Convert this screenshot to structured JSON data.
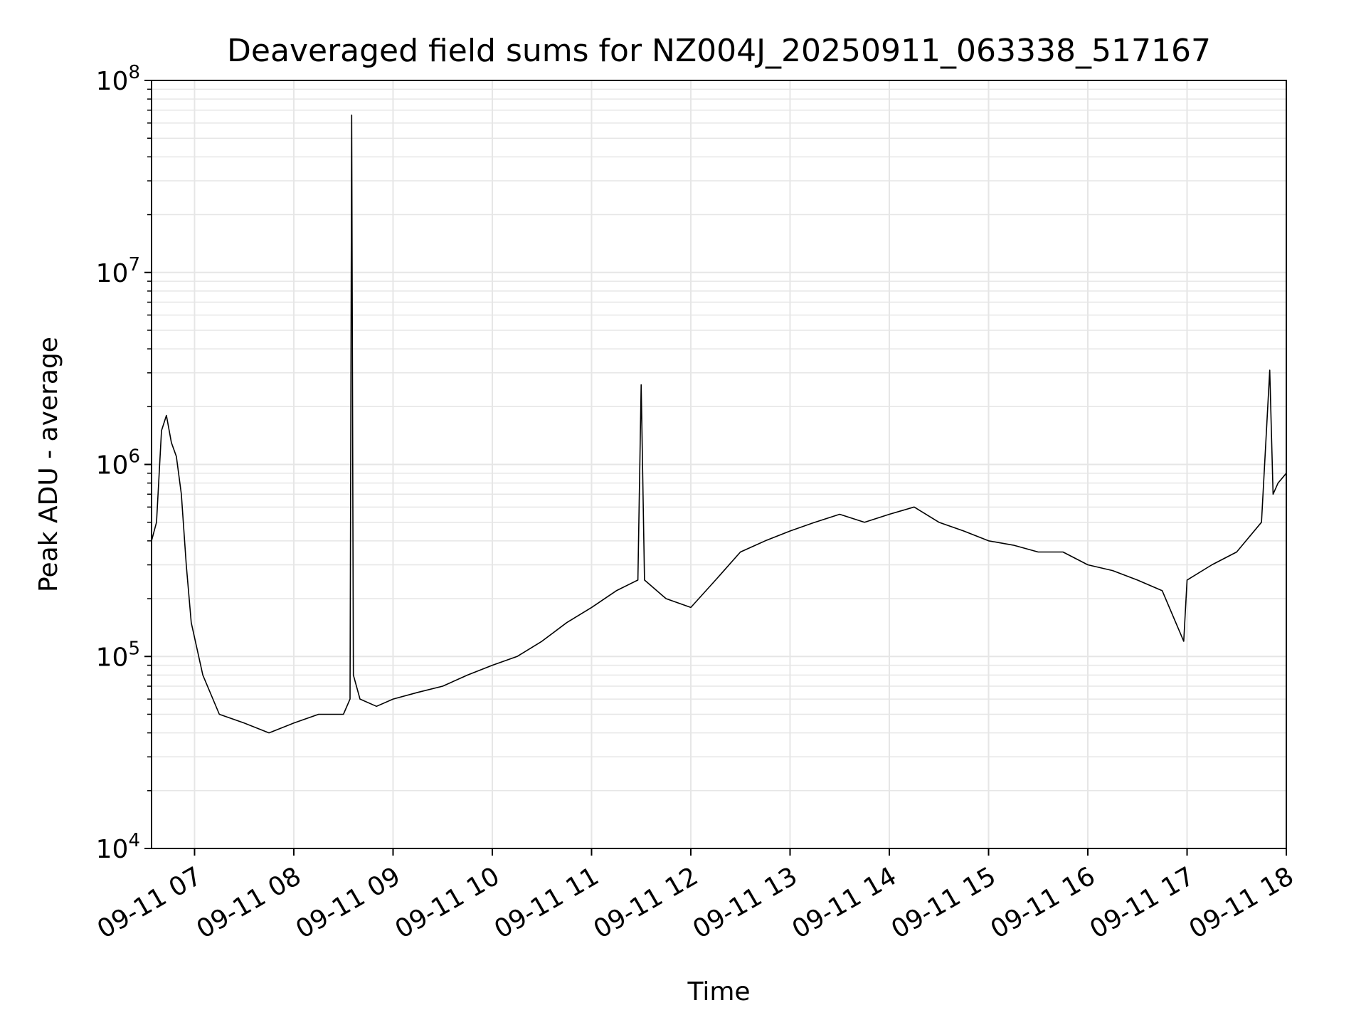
{
  "chart_data": {
    "type": "line",
    "title": "Deaveraged field sums for NZ004J_20250911_063338_517167",
    "xlabel": "Time",
    "ylabel": "Peak ADU - average",
    "yscale": "log",
    "ylim": [
      10000,
      100000000
    ],
    "xlim": [
      "2025-09-11 06:34",
      "2025-09-11 18:00"
    ],
    "grid": true,
    "line_color": "#000000",
    "grid_color": "#e6e6e6",
    "x_ticks": [
      {
        "t": "2025-09-11 07:00",
        "label": "09-11 07"
      },
      {
        "t": "2025-09-11 08:00",
        "label": "09-11 08"
      },
      {
        "t": "2025-09-11 09:00",
        "label": "09-11 09"
      },
      {
        "t": "2025-09-11 10:00",
        "label": "09-11 10"
      },
      {
        "t": "2025-09-11 11:00",
        "label": "09-11 11"
      },
      {
        "t": "2025-09-11 12:00",
        "label": "09-11 12"
      },
      {
        "t": "2025-09-11 13:00",
        "label": "09-11 13"
      },
      {
        "t": "2025-09-11 14:00",
        "label": "09-11 14"
      },
      {
        "t": "2025-09-11 15:00",
        "label": "09-11 15"
      },
      {
        "t": "2025-09-11 16:00",
        "label": "09-11 16"
      },
      {
        "t": "2025-09-11 17:00",
        "label": "09-11 17"
      },
      {
        "t": "2025-09-11 18:00",
        "label": "09-11 18"
      }
    ],
    "y_ticks": [
      {
        "value": 10000,
        "base": "10",
        "exp": "4"
      },
      {
        "value": 100000,
        "base": "10",
        "exp": "5"
      },
      {
        "value": 1000000,
        "base": "10",
        "exp": "6"
      },
      {
        "value": 10000000,
        "base": "10",
        "exp": "7"
      },
      {
        "value": 100000000,
        "base": "10",
        "exp": "8"
      }
    ],
    "series": [
      {
        "x": [
          "2025-09-11 06:34",
          "2025-09-11 06:37",
          "2025-09-11 06:40",
          "2025-09-11 06:43",
          "2025-09-11 06:46",
          "2025-09-11 06:49",
          "2025-09-11 06:52",
          "2025-09-11 06:55",
          "2025-09-11 06:58",
          "2025-09-11 07:05",
          "2025-09-11 07:15",
          "2025-09-11 07:30",
          "2025-09-11 07:45",
          "2025-09-11 08:00",
          "2025-09-11 08:15",
          "2025-09-11 08:30",
          "2025-09-11 08:34",
          "2025-09-11 08:35",
          "2025-09-11 08:36",
          "2025-09-11 08:40",
          "2025-09-11 08:50",
          "2025-09-11 09:00",
          "2025-09-11 09:15",
          "2025-09-11 09:30",
          "2025-09-11 09:45",
          "2025-09-11 10:00",
          "2025-09-11 10:15",
          "2025-09-11 10:30",
          "2025-09-11 10:45",
          "2025-09-11 11:00",
          "2025-09-11 11:15",
          "2025-09-11 11:28",
          "2025-09-11 11:30",
          "2025-09-11 11:32",
          "2025-09-11 11:45",
          "2025-09-11 12:00",
          "2025-09-11 12:15",
          "2025-09-11 12:30",
          "2025-09-11 12:45",
          "2025-09-11 13:00",
          "2025-09-11 13:15",
          "2025-09-11 13:30",
          "2025-09-11 13:45",
          "2025-09-11 14:00",
          "2025-09-11 14:15",
          "2025-09-11 14:30",
          "2025-09-11 14:45",
          "2025-09-11 15:00",
          "2025-09-11 15:15",
          "2025-09-11 15:30",
          "2025-09-11 15:45",
          "2025-09-11 16:00",
          "2025-09-11 16:15",
          "2025-09-11 16:30",
          "2025-09-11 16:45",
          "2025-09-11 16:58",
          "2025-09-11 17:00",
          "2025-09-11 17:15",
          "2025-09-11 17:30",
          "2025-09-11 17:45",
          "2025-09-11 17:50",
          "2025-09-11 17:52",
          "2025-09-11 17:55",
          "2025-09-11 18:00"
        ],
        "y": [
          400000,
          500000,
          1500000,
          1800000,
          1300000,
          1100000,
          700000,
          300000,
          150000,
          80000,
          50000,
          45000,
          40000,
          45000,
          50000,
          50000,
          60000,
          66000000,
          80000,
          60000,
          55000,
          60000,
          65000,
          70000,
          80000,
          90000,
          100000,
          120000,
          150000,
          180000,
          220000,
          250000,
          2600000,
          250000,
          200000,
          180000,
          250000,
          350000,
          400000,
          450000,
          500000,
          550000,
          500000,
          550000,
          600000,
          500000,
          450000,
          400000,
          380000,
          350000,
          350000,
          300000,
          280000,
          250000,
          220000,
          120000,
          250000,
          300000,
          350000,
          500000,
          3100000,
          700000,
          800000,
          900000
        ]
      }
    ]
  }
}
